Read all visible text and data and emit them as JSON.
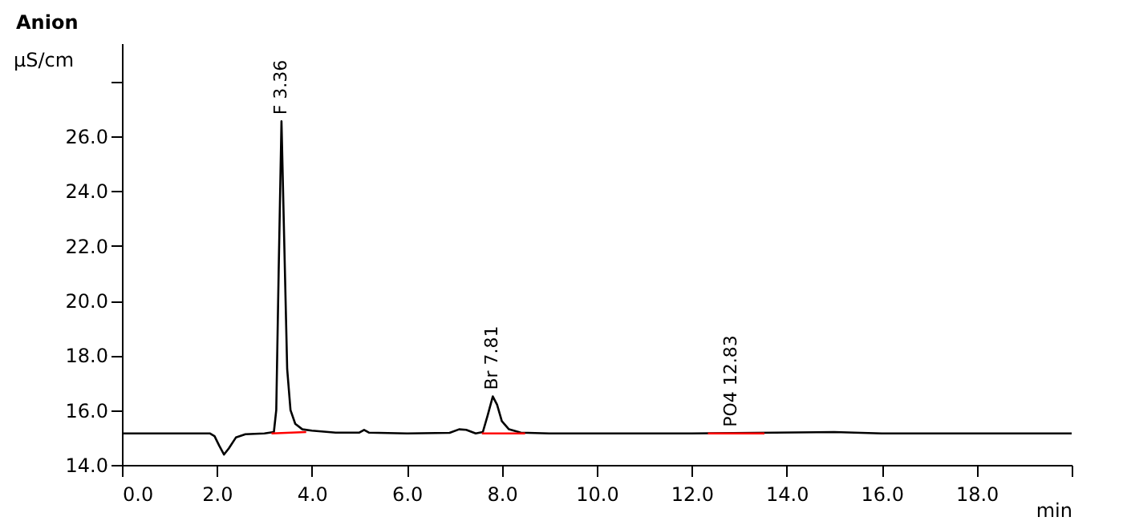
{
  "chart_data": {
    "type": "line",
    "title": "Anion",
    "ylabel": "µS/cm",
    "xlabel": "min",
    "xlim": [
      0,
      20
    ],
    "xticks": [
      {
        "value": 0,
        "label": "0.0"
      },
      {
        "value": 2,
        "label": "2.0"
      },
      {
        "value": 4,
        "label": "4.0"
      },
      {
        "value": 6,
        "label": "6.0"
      },
      {
        "value": 8,
        "label": "8.0"
      },
      {
        "value": 10,
        "label": "10.0"
      },
      {
        "value": 12,
        "label": "12.0"
      },
      {
        "value": 14,
        "label": "14.0"
      },
      {
        "value": 16,
        "label": "16.0"
      },
      {
        "value": 18,
        "label": "18.0"
      },
      {
        "value": 20,
        "label": null
      }
    ],
    "ylim": [
      14,
      29.4
    ],
    "yticks": [
      {
        "value": 14,
        "label": "14.0"
      },
      {
        "value": 16,
        "label": "16.0"
      },
      {
        "value": 18,
        "label": "18.0"
      },
      {
        "value": 20,
        "label": "20.0"
      },
      {
        "value": 22,
        "label": "22.0"
      },
      {
        "value": 24,
        "label": "24.0"
      },
      {
        "value": 26,
        "label": "26.0"
      },
      {
        "value": 28,
        "label": null
      }
    ],
    "grid": false,
    "line_style": "solid",
    "series": [
      {
        "color": "#000000",
        "x": [
          0,
          1.0,
          1.85,
          1.95,
          2.05,
          2.15,
          2.25,
          2.4,
          2.6,
          3.0,
          3.2,
          3.25,
          3.3,
          3.36,
          3.42,
          3.48,
          3.55,
          3.65,
          3.8,
          4.0,
          4.5,
          5.0,
          5.1,
          5.2,
          6.0,
          6.9,
          7.1,
          7.25,
          7.45,
          7.6,
          7.7,
          7.81,
          7.9,
          8.0,
          8.15,
          8.4,
          9.0,
          12.0,
          15.0,
          16.0,
          20.0
        ],
        "values": [
          15.15,
          15.15,
          15.15,
          15.05,
          14.7,
          14.38,
          14.6,
          15.0,
          15.12,
          15.15,
          15.2,
          16.0,
          21.0,
          26.55,
          22.0,
          17.5,
          16.0,
          15.5,
          15.3,
          15.25,
          15.18,
          15.18,
          15.28,
          15.18,
          15.15,
          15.17,
          15.3,
          15.28,
          15.15,
          15.2,
          15.8,
          16.5,
          16.2,
          15.6,
          15.3,
          15.18,
          15.15,
          15.15,
          15.2,
          15.15,
          15.15
        ]
      },
      {
        "color": "#ff0000",
        "x": [
          3.15,
          3.88
        ],
        "values": [
          15.15,
          15.2
        ]
      },
      {
        "color": "#ff0000",
        "x": [
          7.58,
          8.49
        ],
        "values": [
          15.15,
          15.15
        ]
      },
      {
        "color": "#ff0000",
        "x": [
          12.34,
          13.53
        ],
        "values": [
          15.15,
          15.15
        ]
      }
    ],
    "annotations": [
      {
        "text": "F 3.36",
        "x": 3.36,
        "y": 26.55
      },
      {
        "text": "Br 7.81",
        "x": 7.81,
        "y": 16.5
      },
      {
        "text": "PO4 12.83",
        "x": 12.83,
        "y": 15.15
      }
    ]
  }
}
